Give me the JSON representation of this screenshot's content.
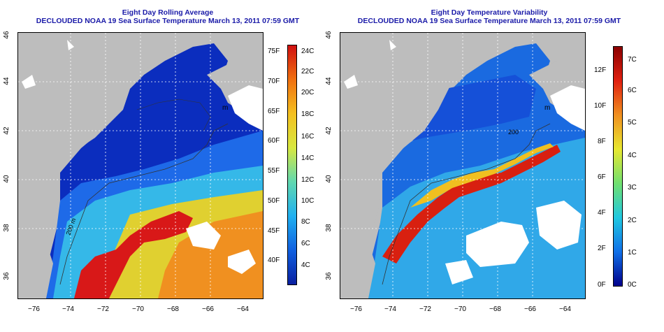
{
  "left_panel": {
    "title_line1": "Eight Day Rolling Average",
    "title_line2": "DECLOUDED NOAA 19 Sea Surface Temperature March 13, 2011 07:59 GMT",
    "colorbar": {
      "labels_f": [
        "75F",
        "70F",
        "65F",
        "60F",
        "55F",
        "50F",
        "45F",
        "40F"
      ],
      "labels_c": [
        "24C",
        "22C",
        "20C",
        "18C",
        "16C",
        "14C",
        "12C",
        "10C",
        "8C",
        "6C",
        "4C"
      ],
      "colors": [
        "#d01010",
        "#f07010",
        "#f4c020",
        "#d8e840",
        "#60d8b0",
        "#20b0f0",
        "#1060e0",
        "#0a20a0"
      ]
    }
  },
  "right_panel": {
    "title_line1": "Eight Day Temperature Variability",
    "title_line2": "DECLOUDED NOAA 19 Sea Surface Temperature March 13, 2011 07:59 GMT",
    "colorbar": {
      "labels_f": [
        "12F",
        "10F",
        "8F",
        "6F",
        "4F",
        "2F",
        "0F"
      ],
      "labels_c": [
        "7C",
        "6C",
        "5C",
        "4C",
        "3C",
        "2C",
        "1C",
        "0C"
      ],
      "colors": [
        "#8b0000",
        "#e02010",
        "#f09020",
        "#e8e830",
        "#70e070",
        "#20c8e0",
        "#1070e8",
        "#00008b"
      ]
    }
  },
  "axes": {
    "lon_labels": [
      "−76",
      "−74",
      "−72",
      "−70",
      "−68",
      "−66",
      "−64"
    ],
    "lat_labels": [
      "46",
      "44",
      "42",
      "40",
      "38",
      "36"
    ]
  },
  "map_labels": {
    "left_contour": "m",
    "left_depth": "200 m",
    "right_contour": "m",
    "right_depth": "200"
  }
}
